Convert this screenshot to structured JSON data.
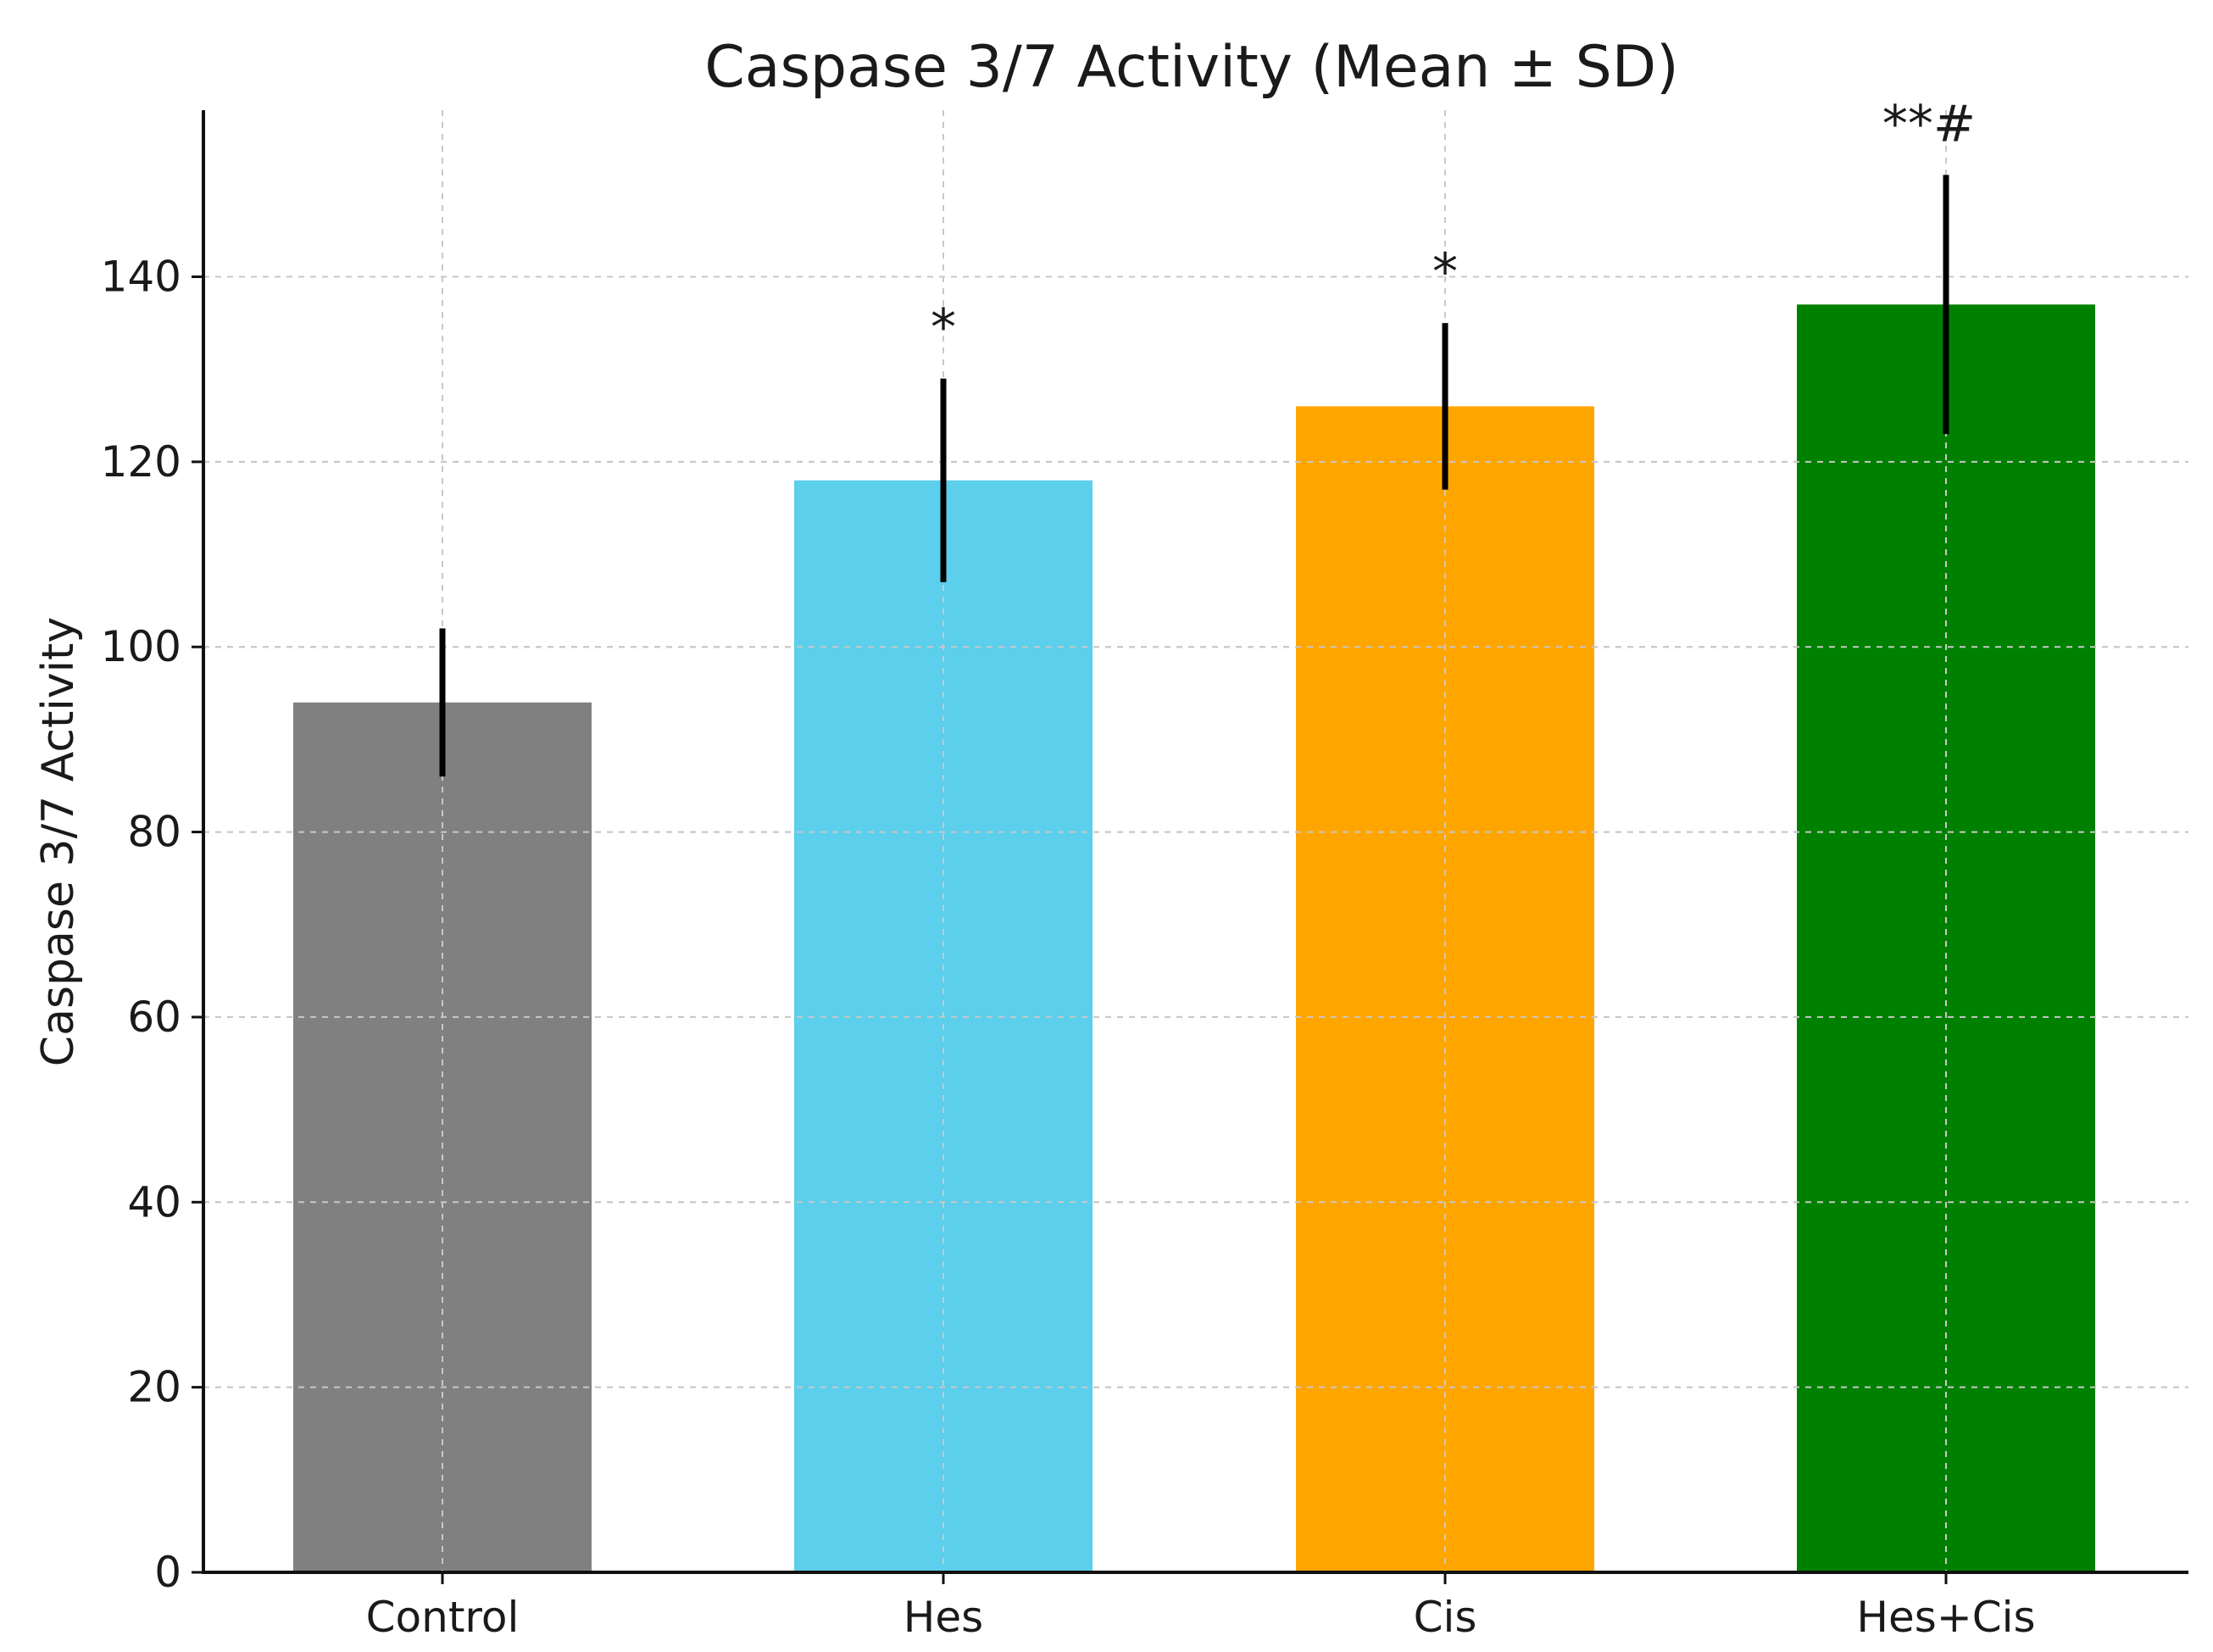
{
  "chart_data": {
    "type": "bar",
    "title": "Caspase 3/7 Activity (Mean ± SD)",
    "xlabel": "",
    "ylabel": "Caspase 3/7 Activity",
    "categories": [
      "Control",
      "Hes",
      "Cis",
      "Hes+Cis"
    ],
    "values": [
      94,
      118,
      126,
      137
    ],
    "errors": [
      8,
      11,
      9,
      14
    ],
    "colors": [
      "#808080",
      "#5bcfeb",
      "#ffa500",
      "#008000"
    ],
    "annotations": [
      "",
      "*",
      "*",
      "**#"
    ],
    "ylim": [
      0,
      158
    ],
    "yticks": [
      0,
      20,
      40,
      60,
      80,
      100,
      120,
      140
    ],
    "grid": true
  }
}
